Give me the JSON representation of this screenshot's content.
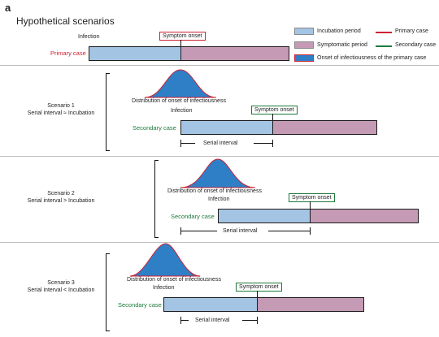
{
  "panel_letter": "a",
  "title": "Hypothetical scenarios",
  "legend": {
    "incubation": "Incubation period",
    "primary": "Primary case",
    "symptomatic": "Symptomatic period",
    "secondary": "Secondary case",
    "onset_infectiousness": "Onset of infectiousness of the primary case"
  },
  "primary": {
    "infection_label": "Infection",
    "symptom_onset": "Symptom onset",
    "case_label": "Primary case"
  },
  "scenarios": [
    {
      "name": "Scenario 1",
      "desc": "Serial interval ≈ Incubation",
      "distribution_label": "Distribution of onset of infectiousness",
      "infection_label": "Infection",
      "symptom_onset": "Symptom onset",
      "case_label": "Secondary case",
      "serial_interval": "Serial interval"
    },
    {
      "name": "Scenario 2",
      "desc": "Serial interval > Incubation",
      "distribution_label": "Distribution of onset of infectiousness",
      "infection_label": "Infection",
      "symptom_onset": "Symptom onset",
      "case_label": "Secondary case",
      "serial_interval": "Serial interval"
    },
    {
      "name": "Scenario 3",
      "desc": "Serial interval < Incubation",
      "distribution_label": "Distribution of onset of infectiousness",
      "infection_label": "Infection",
      "symptom_onset": "Symptom onset",
      "case_label": "Secondary case",
      "serial_interval": "Serial interval"
    }
  ],
  "colors": {
    "incubation": "#a4c4e4",
    "symptomatic": "#c59ab5",
    "primary_line": "#cc2233",
    "secondary_line": "#1d7a3a",
    "infectiousness_fill": "#2f7fc6"
  }
}
